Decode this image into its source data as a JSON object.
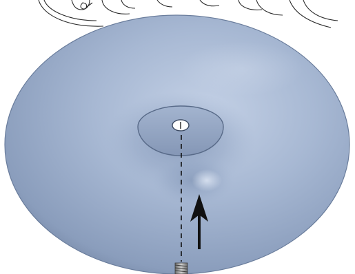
{
  "diagram": {
    "colors": {
      "background": "#ffffff",
      "line_art": "#2b2b2b",
      "torus_light": "#b3c3dd",
      "torus_mid": "#96a9c6",
      "torus_dark": "#6f819f",
      "hub_fill": "#8ea1bf",
      "arrow": "#111111",
      "bolt": "#9a9a9a"
    },
    "parts": [
      {
        "name": "decorative-line-art",
        "icon": "cushion-line-art"
      },
      {
        "name": "inflatable-ring",
        "icon": "torus-shape"
      },
      {
        "name": "center-hub",
        "icon": "oval-recess"
      },
      {
        "name": "center-hole",
        "icon": "hole"
      },
      {
        "name": "alignment-dashed-line",
        "icon": "dashed-line"
      },
      {
        "name": "insertion-arrow",
        "icon": "up-arrow"
      },
      {
        "name": "threaded-bolt",
        "icon": "bolt"
      }
    ]
  }
}
